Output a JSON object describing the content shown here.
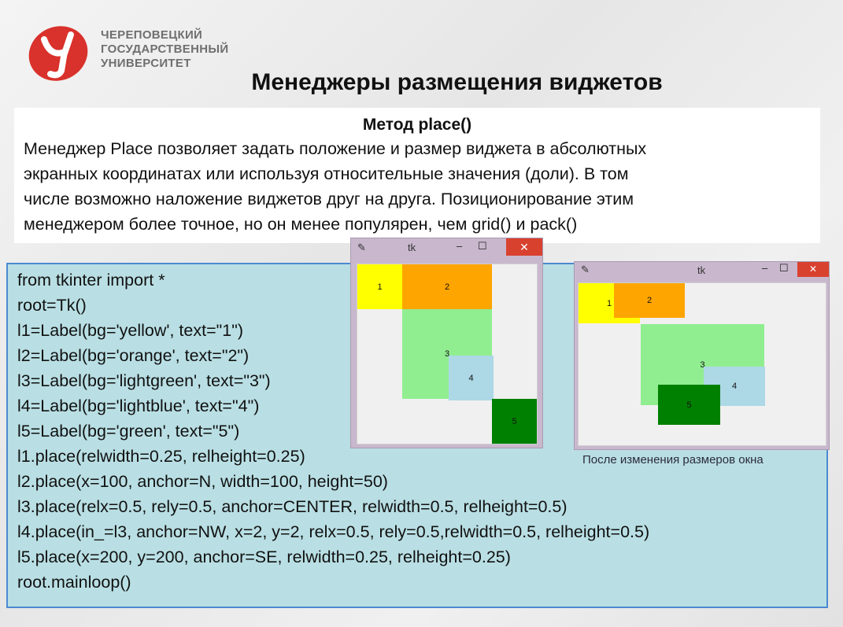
{
  "header": {
    "university_lines": [
      "ЧЕРЕПОВЕЦКИЙ",
      "ГОСУДАРСТВЕННЫЙ",
      "УНИВЕРСИТЕТ"
    ],
    "slide_title": "Менеджеры размещения виджетов"
  },
  "description": {
    "heading": "Метод place()",
    "lines": [
      "Менеджер Place позволяет задать положение и размер виджета в абсолютных",
      "экранных координатах или используя относительные значения (доли). В том",
      "числе возможно наложение виджетов друг на друга. Позиционирование этим",
      "менеджером более точное, но он менее популярен, чем grid() и pack()"
    ]
  },
  "code_lines": [
    "from tkinter import *",
    "root=Tk()",
    "l1=Label(bg='yellow', text=\"1\")",
    "l2=Label(bg='orange', text=\"2\")",
    "l3=Label(bg='lightgreen', text=\"3\")",
    "l4=Label(bg='lightblue', text=\"4\")",
    "l5=Label(bg='green', text=\"5\")",
    "l1.place(relwidth=0.25, relheight=0.25)",
    "l2.place(x=100, anchor=N, width=100, height=50)",
    "l3.place(relx=0.5, rely=0.5, anchor=CENTER, relwidth=0.5, relheight=0.5)",
    "l4.place(in_=l3, anchor=NW, x=2, y=2, relx=0.5, rely=0.5,relwidth=0.5, relheight=0.5)",
    "l5.place(x=200, y=200, anchor=SE, relwidth=0.25, relheight=0.25)",
    "root.mainloop()"
  ],
  "window_small": {
    "title": "tk",
    "minimize": "–",
    "maximize": "☐",
    "close": "✕",
    "labels": [
      "1",
      "2",
      "3",
      "4",
      "5"
    ]
  },
  "window_large": {
    "title": "tk",
    "minimize": "–",
    "maximize": "☐",
    "close": "✕",
    "labels": [
      "1",
      "2",
      "3",
      "4",
      "5"
    ]
  },
  "caption": "После изменения размеров окна",
  "colors": {
    "yellow": "#ffff00",
    "orange": "#ffa500",
    "lightgreen": "#90ee90",
    "lightblue": "#add8e6",
    "green": "#008000",
    "code_bg": "#b9dfe4",
    "logo_red": "#d9312b"
  }
}
